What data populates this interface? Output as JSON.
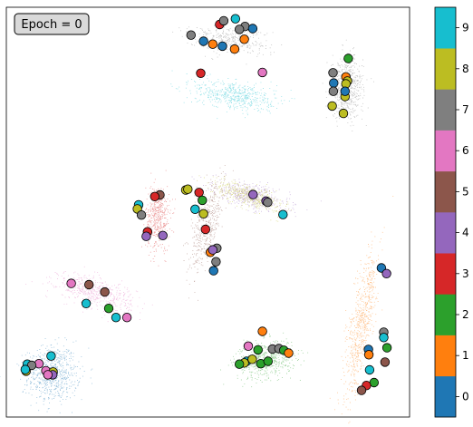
{
  "chart_data": {
    "type": "scatter",
    "title": "",
    "xlabel": "",
    "ylabel": "",
    "annotation": "Epoch = 0",
    "xlim": [
      0,
      100
    ],
    "ylim": [
      0,
      100
    ],
    "grid": false,
    "axis_ticks": false,
    "palette": [
      "#1f77b4",
      "#ff7f0e",
      "#2ca02c",
      "#d62728",
      "#9467bd",
      "#8c564b",
      "#e377c2",
      "#7f7f7f",
      "#bcbd22",
      "#17becf"
    ],
    "colorbar": {
      "labels": [
        "0",
        "1",
        "2",
        "3",
        "4",
        "5",
        "6",
        "7",
        "8",
        "9"
      ],
      "range": [
        -0.5,
        9.5
      ]
    },
    "clusters": [
      {
        "label": 0,
        "cx": 11.5,
        "cy": 10.5,
        "rx": 6.5,
        "ry": 7.0,
        "angle": 10,
        "n": 650
      },
      {
        "label": 1,
        "cx": 88.0,
        "cy": 23.0,
        "rx": 2.8,
        "ry": 18.5,
        "angle": -10,
        "n": 650
      },
      {
        "label": 2,
        "cx": 64.0,
        "cy": 14.0,
        "rx": 7.5,
        "ry": 4.5,
        "angle": 10,
        "n": 550
      },
      {
        "label": 3,
        "cx": 37.5,
        "cy": 48.5,
        "rx": 3.0,
        "ry": 8.0,
        "angle": 0,
        "n": 450
      },
      {
        "label": 4,
        "cx": 60.5,
        "cy": 54.0,
        "rx": 9.5,
        "ry": 3.0,
        "angle": -15,
        "n": 450
      },
      {
        "label": 5,
        "cx": 49.5,
        "cy": 46.5,
        "rx": 3.2,
        "ry": 10.5,
        "angle": -15,
        "n": 450
      },
      {
        "label": 6,
        "cx": 22.0,
        "cy": 30.5,
        "rx": 9.5,
        "ry": 3.5,
        "angle": -15,
        "n": 550
      },
      {
        "label": 7,
        "cx": 84.5,
        "cy": 80.5,
        "rx": 4.0,
        "ry": 7.5,
        "angle": 0,
        "n": 550
      },
      {
        "label": 8,
        "cx": 60.0,
        "cy": 54.0,
        "rx": 9.0,
        "ry": 2.5,
        "angle": -20,
        "n": 420
      },
      {
        "label": 9,
        "cx": 56.5,
        "cy": 78.5,
        "rx": 10.0,
        "ry": 3.5,
        "angle": -8,
        "n": 550
      },
      {
        "label": 7,
        "cx": 55.0,
        "cy": 92.0,
        "rx": 10.0,
        "ry": 3.2,
        "angle": -5,
        "n": 350
      }
    ],
    "markers": [
      {
        "x": 56.8,
        "y": 97.2,
        "label": 9
      },
      {
        "x": 59.2,
        "y": 95.3,
        "label": 7
      },
      {
        "x": 52.9,
        "y": 95.8,
        "label": 3
      },
      {
        "x": 53.9,
        "y": 96.7,
        "label": 7
      },
      {
        "x": 57.8,
        "y": 94.6,
        "label": 7
      },
      {
        "x": 61.1,
        "y": 94.8,
        "label": 0
      },
      {
        "x": 45.8,
        "y": 93.2,
        "label": 7
      },
      {
        "x": 59.0,
        "y": 92.2,
        "label": 1
      },
      {
        "x": 48.9,
        "y": 91.7,
        "label": 0
      },
      {
        "x": 51.2,
        "y": 91.0,
        "label": 1
      },
      {
        "x": 53.6,
        "y": 90.5,
        "label": 0
      },
      {
        "x": 56.6,
        "y": 89.8,
        "label": 1
      },
      {
        "x": 48.2,
        "y": 83.9,
        "label": 3
      },
      {
        "x": 63.5,
        "y": 84.1,
        "label": 6
      },
      {
        "x": 84.8,
        "y": 87.5,
        "label": 2
      },
      {
        "x": 81.0,
        "y": 84.0,
        "label": 7
      },
      {
        "x": 84.2,
        "y": 83.0,
        "label": 1
      },
      {
        "x": 81.2,
        "y": 81.5,
        "label": 0
      },
      {
        "x": 84.6,
        "y": 82.0,
        "label": 8
      },
      {
        "x": 84.2,
        "y": 81.3,
        "label": 8
      },
      {
        "x": 81.1,
        "y": 79.5,
        "label": 7
      },
      {
        "x": 84.0,
        "y": 78.2,
        "label": 8
      },
      {
        "x": 84.0,
        "y": 79.5,
        "label": 0
      },
      {
        "x": 80.8,
        "y": 75.9,
        "label": 8
      },
      {
        "x": 83.6,
        "y": 74.1,
        "label": 8
      },
      {
        "x": 44.5,
        "y": 55.4,
        "label": 8
      },
      {
        "x": 45.0,
        "y": 55.6,
        "label": 8
      },
      {
        "x": 47.8,
        "y": 54.8,
        "label": 3
      },
      {
        "x": 48.6,
        "y": 52.9,
        "label": 2
      },
      {
        "x": 46.8,
        "y": 50.7,
        "label": 9
      },
      {
        "x": 48.9,
        "y": 49.6,
        "label": 8
      },
      {
        "x": 49.4,
        "y": 45.8,
        "label": 3
      },
      {
        "x": 52.2,
        "y": 41.2,
        "label": 7
      },
      {
        "x": 50.6,
        "y": 40.2,
        "label": 1
      },
      {
        "x": 51.2,
        "y": 40.8,
        "label": 4
      },
      {
        "x": 52.0,
        "y": 37.9,
        "label": 7
      },
      {
        "x": 51.4,
        "y": 35.7,
        "label": 0
      },
      {
        "x": 38.1,
        "y": 54.2,
        "label": 5
      },
      {
        "x": 36.8,
        "y": 53.8,
        "label": 3
      },
      {
        "x": 32.8,
        "y": 51.8,
        "label": 9
      },
      {
        "x": 32.5,
        "y": 50.8,
        "label": 8
      },
      {
        "x": 33.5,
        "y": 49.3,
        "label": 7
      },
      {
        "x": 35.0,
        "y": 45.2,
        "label": 3
      },
      {
        "x": 34.7,
        "y": 44.1,
        "label": 4
      },
      {
        "x": 38.8,
        "y": 44.3,
        "label": 4
      },
      {
        "x": 61.2,
        "y": 54.3,
        "label": 4
      },
      {
        "x": 64.4,
        "y": 52.7,
        "label": 4
      },
      {
        "x": 64.8,
        "y": 52.4,
        "label": 7
      },
      {
        "x": 68.6,
        "y": 49.4,
        "label": 9
      },
      {
        "x": 16.1,
        "y": 32.6,
        "label": 6
      },
      {
        "x": 20.5,
        "y": 32.3,
        "label": 5
      },
      {
        "x": 24.4,
        "y": 30.5,
        "label": 5
      },
      {
        "x": 19.8,
        "y": 27.7,
        "label": 9
      },
      {
        "x": 25.4,
        "y": 26.5,
        "label": 2
      },
      {
        "x": 27.2,
        "y": 24.3,
        "label": 9
      },
      {
        "x": 29.9,
        "y": 24.3,
        "label": 6
      },
      {
        "x": 93.0,
        "y": 36.4,
        "label": 0
      },
      {
        "x": 94.3,
        "y": 35.0,
        "label": 4
      },
      {
        "x": 93.6,
        "y": 20.7,
        "label": 7
      },
      {
        "x": 93.6,
        "y": 19.4,
        "label": 9
      },
      {
        "x": 94.4,
        "y": 16.9,
        "label": 2
      },
      {
        "x": 89.8,
        "y": 16.5,
        "label": 0
      },
      {
        "x": 89.9,
        "y": 15.2,
        "label": 1
      },
      {
        "x": 93.9,
        "y": 13.4,
        "label": 5
      },
      {
        "x": 90.1,
        "y": 11.5,
        "label": 9
      },
      {
        "x": 91.2,
        "y": 8.4,
        "label": 2
      },
      {
        "x": 89.3,
        "y": 7.7,
        "label": 3
      },
      {
        "x": 88.1,
        "y": 6.5,
        "label": 5
      },
      {
        "x": 63.5,
        "y": 20.9,
        "label": 1
      },
      {
        "x": 66.0,
        "y": 16.6,
        "label": 7
      },
      {
        "x": 60.0,
        "y": 17.3,
        "label": 6
      },
      {
        "x": 62.4,
        "y": 16.4,
        "label": 2
      },
      {
        "x": 67.6,
        "y": 16.7,
        "label": 7
      },
      {
        "x": 68.8,
        "y": 16.3,
        "label": 2
      },
      {
        "x": 70.0,
        "y": 15.6,
        "label": 1
      },
      {
        "x": 59.6,
        "y": 13.6,
        "label": 9
      },
      {
        "x": 61.0,
        "y": 14.1,
        "label": 8
      },
      {
        "x": 59.0,
        "y": 13.2,
        "label": 8
      },
      {
        "x": 63.1,
        "y": 13.0,
        "label": 2
      },
      {
        "x": 64.9,
        "y": 13.6,
        "label": 2
      },
      {
        "x": 57.8,
        "y": 12.9,
        "label": 2
      },
      {
        "x": 11.1,
        "y": 14.9,
        "label": 9
      },
      {
        "x": 8.1,
        "y": 13.0,
        "label": 6
      },
      {
        "x": 5.2,
        "y": 12.9,
        "label": 9
      },
      {
        "x": 6.3,
        "y": 12.6,
        "label": 7
      },
      {
        "x": 9.8,
        "y": 11.3,
        "label": 6
      },
      {
        "x": 11.6,
        "y": 11.0,
        "label": 8
      },
      {
        "x": 11.5,
        "y": 10.3,
        "label": 4
      },
      {
        "x": 4.9,
        "y": 11.2,
        "label": 8
      },
      {
        "x": 4.7,
        "y": 11.6,
        "label": 9
      },
      {
        "x": 10.3,
        "y": 10.3,
        "label": 6
      }
    ]
  }
}
